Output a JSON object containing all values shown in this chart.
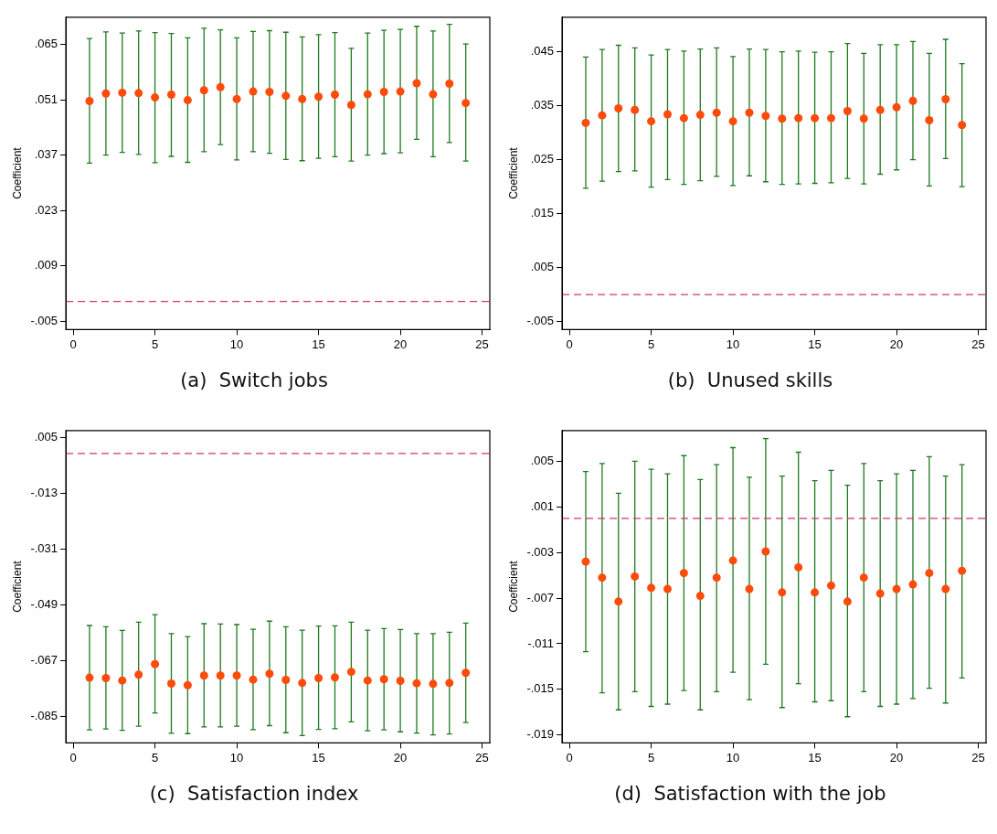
{
  "chart_data": [
    {
      "type": "scatter",
      "title": "(a)  Switch jobs",
      "ylabel": "Coefficient",
      "x": [
        1,
        2,
        3,
        4,
        5,
        6,
        7,
        8,
        9,
        10,
        11,
        12,
        13,
        14,
        15,
        16,
        17,
        18,
        19,
        20,
        21,
        22,
        23,
        24
      ],
      "series": [
        {
          "color": "#ff4a0a",
          "marker": "circle",
          "values": [
            0.0507,
            0.0526,
            0.0528,
            0.0527,
            0.0516,
            0.0523,
            0.0509,
            0.0534,
            0.0542,
            0.0512,
            0.0531,
            0.053,
            0.052,
            0.0512,
            0.0518,
            0.0523,
            0.0497,
            0.0524,
            0.053,
            0.0531,
            0.0552,
            0.0524,
            0.0551,
            0.0502
          ],
          "errors": [
            [
              0.035,
              0.0665
            ],
            [
              0.037,
              0.0682
            ],
            [
              0.0377,
              0.0679
            ],
            [
              0.0372,
              0.0684
            ],
            [
              0.0351,
              0.068
            ],
            [
              0.0367,
              0.0678
            ],
            [
              0.0352,
              0.0667
            ],
            [
              0.0379,
              0.0691
            ],
            [
              0.0397,
              0.0687
            ],
            [
              0.0358,
              0.0667
            ],
            [
              0.0379,
              0.0683
            ],
            [
              0.0375,
              0.0685
            ],
            [
              0.0359,
              0.0681
            ],
            [
              0.0356,
              0.0669
            ],
            [
              0.0362,
              0.0675
            ],
            [
              0.0366,
              0.068
            ],
            [
              0.0355,
              0.064
            ],
            [
              0.037,
              0.0679
            ],
            [
              0.0374,
              0.0686
            ],
            [
              0.0376,
              0.0688
            ],
            [
              0.041,
              0.0696
            ],
            [
              0.0366,
              0.0684
            ],
            [
              0.0402,
              0.0701
            ],
            [
              0.0355,
              0.0651
            ]
          ]
        }
      ],
      "xlim": [
        -0.45,
        25.47
      ],
      "xticks": [
        0,
        5,
        10,
        15,
        20,
        25
      ],
      "ylim": [
        -0.0071,
        0.0719
      ],
      "yticks": [
        {
          "value": -0.005,
          "label": "-.005"
        },
        {
          "value": 0.009,
          "label": ".009"
        },
        {
          "value": 0.023,
          "label": ".023"
        },
        {
          "value": 0.037,
          "label": ".037"
        },
        {
          "value": 0.051,
          "label": ".051"
        },
        {
          "value": 0.065,
          "label": ".065"
        }
      ],
      "ref_lines": [
        {
          "axis": "y",
          "value": 0,
          "color": "#d6336c",
          "line_style": "dashed"
        }
      ],
      "grid": false,
      "legend": false
    },
    {
      "type": "scatter",
      "title": "(b)  Unused skills",
      "ylabel": "Coefficient",
      "x": [
        1,
        2,
        3,
        4,
        5,
        6,
        7,
        8,
        9,
        10,
        11,
        12,
        13,
        14,
        15,
        16,
        17,
        18,
        19,
        20,
        21,
        22,
        23,
        24
      ],
      "series": [
        {
          "color": "#ff4a0a",
          "marker": "circle",
          "values": [
            0.0318,
            0.0332,
            0.0345,
            0.0342,
            0.0321,
            0.0334,
            0.0327,
            0.0333,
            0.0337,
            0.0321,
            0.0337,
            0.0331,
            0.0326,
            0.0327,
            0.0327,
            0.0327,
            0.034,
            0.0326,
            0.0342,
            0.0347,
            0.0359,
            0.0323,
            0.0362,
            0.0314
          ],
          "errors": [
            [
              0.0197,
              0.044
            ],
            [
              0.021,
              0.0454
            ],
            [
              0.0228,
              0.0462
            ],
            [
              0.0229,
              0.0457
            ],
            [
              0.0199,
              0.0444
            ],
            [
              0.0213,
              0.0454
            ],
            [
              0.0204,
              0.0451
            ],
            [
              0.0211,
              0.0455
            ],
            [
              0.0219,
              0.0457
            ],
            [
              0.0202,
              0.0441
            ],
            [
              0.022,
              0.0455
            ],
            [
              0.0209,
              0.0454
            ],
            [
              0.0204,
              0.045
            ],
            [
              0.0205,
              0.0451
            ],
            [
              0.0206,
              0.0449
            ],
            [
              0.0207,
              0.045
            ],
            [
              0.0215,
              0.0465
            ],
            [
              0.0205,
              0.0447
            ],
            [
              0.0223,
              0.0463
            ],
            [
              0.0231,
              0.0463
            ],
            [
              0.025,
              0.0469
            ],
            [
              0.0201,
              0.0447
            ],
            [
              0.0252,
              0.0473
            ],
            [
              0.02,
              0.0428
            ]
          ]
        }
      ],
      "xlim": [
        -0.45,
        25.47
      ],
      "xticks": [
        0,
        5,
        10,
        15,
        20,
        25
      ],
      "ylim": [
        -0.0065,
        0.0514
      ],
      "yticks": [
        {
          "value": -0.005,
          "label": "-.005"
        },
        {
          "value": 0.005,
          "label": ".005"
        },
        {
          "value": 0.015,
          "label": ".015"
        },
        {
          "value": 0.025,
          "label": ".025"
        },
        {
          "value": 0.035,
          "label": ".035"
        },
        {
          "value": 0.045,
          "label": ".045"
        }
      ],
      "ref_lines": [
        {
          "axis": "y",
          "value": 0,
          "color": "#d6336c",
          "line_style": "dashed"
        }
      ],
      "grid": false,
      "legend": false
    },
    {
      "type": "scatter",
      "title": "(c)  Satisfaction index",
      "ylabel": "Coefficient",
      "x": [
        1,
        2,
        3,
        4,
        5,
        6,
        7,
        8,
        9,
        10,
        11,
        12,
        13,
        14,
        15,
        16,
        17,
        18,
        19,
        20,
        21,
        22,
        23,
        24
      ],
      "series": [
        {
          "color": "#ff4a0a",
          "marker": "circle",
          "values": [
            -0.0726,
            -0.0727,
            -0.0735,
            -0.0716,
            -0.0682,
            -0.0745,
            -0.075,
            -0.0719,
            -0.0719,
            -0.0719,
            -0.0732,
            -0.0713,
            -0.0733,
            -0.0743,
            -0.0727,
            -0.0725,
            -0.0707,
            -0.0735,
            -0.0731,
            -0.0736,
            -0.0744,
            -0.0746,
            -0.0743,
            -0.071
          ],
          "errors": [
            [
              -0.0895,
              -0.0557
            ],
            [
              -0.0892,
              -0.0561
            ],
            [
              -0.0896,
              -0.0573
            ],
            [
              -0.0883,
              -0.0546
            ],
            [
              -0.084,
              -0.0522
            ],
            [
              -0.0906,
              -0.0583
            ],
            [
              -0.0907,
              -0.0593
            ],
            [
              -0.0885,
              -0.0551
            ],
            [
              -0.0885,
              -0.0552
            ],
            [
              -0.0883,
              -0.0554
            ],
            [
              -0.0894,
              -0.0569
            ],
            [
              -0.0881,
              -0.0543
            ],
            [
              -0.0904,
              -0.0561
            ],
            [
              -0.0913,
              -0.0572
            ],
            [
              -0.0893,
              -0.0559
            ],
            [
              -0.0891,
              -0.0558
            ],
            [
              -0.0869,
              -0.0546
            ],
            [
              -0.0898,
              -0.0572
            ],
            [
              -0.0895,
              -0.0567
            ],
            [
              -0.0901,
              -0.057
            ],
            [
              -0.0905,
              -0.0583
            ],
            [
              -0.0911,
              -0.0583
            ],
            [
              -0.0908,
              -0.0579
            ],
            [
              -0.0871,
              -0.0549
            ]
          ]
        }
      ],
      "xlim": [
        -0.45,
        25.47
      ],
      "xticks": [
        0,
        5,
        10,
        15,
        20,
        25
      ],
      "ylim": [
        -0.0937,
        0.0074
      ],
      "yticks": [
        {
          "value": -0.085,
          "label": "-.085"
        },
        {
          "value": -0.067,
          "label": "-.067"
        },
        {
          "value": -0.049,
          "label": "-.049"
        },
        {
          "value": -0.031,
          "label": "-.031"
        },
        {
          "value": -0.013,
          "label": "-.013"
        },
        {
          "value": 0.005,
          "label": ".005"
        }
      ],
      "ref_lines": [
        {
          "axis": "y",
          "value": 0,
          "color": "#d6336c",
          "line_style": "dashed"
        }
      ],
      "grid": false,
      "legend": false
    },
    {
      "type": "scatter",
      "title": "(d)  Satisfaction with the job",
      "ylabel": "Coefficient",
      "x": [
        1,
        2,
        3,
        4,
        5,
        6,
        7,
        8,
        9,
        10,
        11,
        12,
        13,
        14,
        15,
        16,
        17,
        18,
        19,
        20,
        21,
        22,
        23,
        24
      ],
      "series": [
        {
          "color": "#ff4a0a",
          "marker": "circle",
          "values": [
            -0.0038,
            -0.0052,
            -0.0073,
            -0.0051,
            -0.0061,
            -0.0062,
            -0.0048,
            -0.0068,
            -0.0052,
            -0.0037,
            -0.0062,
            -0.0029,
            -0.0065,
            -0.0043,
            -0.0065,
            -0.0059,
            -0.0073,
            -0.0052,
            -0.0066,
            -0.0062,
            -0.0058,
            -0.0048,
            -0.0062,
            -0.0046
          ],
          "errors": [
            [
              -0.0117,
              0.0041
            ],
            [
              -0.0153,
              0.0048
            ],
            [
              -0.0168,
              0.0022
            ],
            [
              -0.0152,
              0.005
            ],
            [
              -0.0165,
              0.0043
            ],
            [
              -0.0163,
              0.0039
            ],
            [
              -0.0151,
              0.0055
            ],
            [
              -0.0168,
              0.0034
            ],
            [
              -0.0152,
              0.0047
            ],
            [
              -0.0135,
              0.0062
            ],
            [
              -0.0159,
              0.0036
            ],
            [
              -0.0128,
              0.007
            ],
            [
              -0.0166,
              0.0037
            ],
            [
              -0.0145,
              0.0058
            ],
            [
              -0.0161,
              0.0033
            ],
            [
              -0.016,
              0.0042
            ],
            [
              -0.0174,
              0.0029
            ],
            [
              -0.0152,
              0.0048
            ],
            [
              -0.0165,
              0.0033
            ],
            [
              -0.0163,
              0.0039
            ],
            [
              -0.0158,
              0.0042
            ],
            [
              -0.0149,
              0.0054
            ],
            [
              -0.0162,
              0.0037
            ],
            [
              -0.014,
              0.0047
            ]
          ]
        }
      ],
      "xlim": [
        -0.45,
        25.47
      ],
      "xticks": [
        0,
        5,
        10,
        15,
        20,
        25
      ],
      "ylim": [
        -0.0197,
        0.0077
      ],
      "yticks": [
        {
          "value": -0.019,
          "label": "-.019"
        },
        {
          "value": -0.015,
          "label": "-.015"
        },
        {
          "value": -0.011,
          "label": "-.011"
        },
        {
          "value": -0.007,
          "label": "-.007"
        },
        {
          "value": -0.003,
          "label": "-.003"
        },
        {
          "value": 0.001,
          "label": ".001"
        },
        {
          "value": 0.005,
          "label": ".005"
        }
      ],
      "ref_lines": [
        {
          "axis": "y",
          "value": 0,
          "color": "#d6336c",
          "line_style": "dashed"
        }
      ],
      "grid": false,
      "legend": false
    }
  ]
}
